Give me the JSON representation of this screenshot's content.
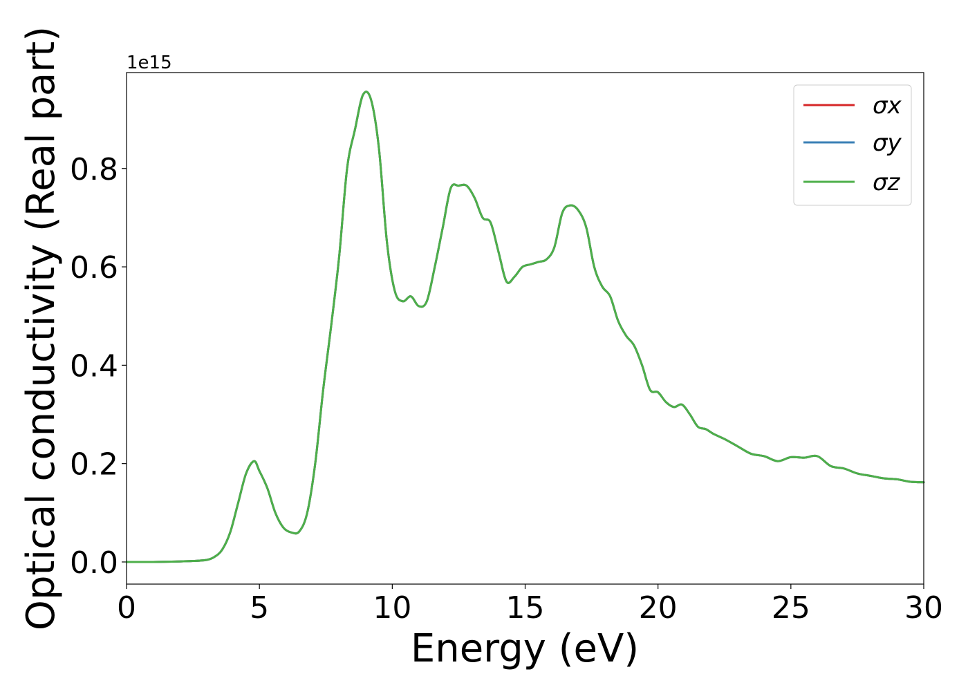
{
  "chart_data": {
    "type": "line",
    "title": "",
    "xlabel": "Energy (eV)",
    "ylabel": "Optical conductivity (Real part)",
    "y_offset_label": "1e15",
    "xlim": [
      0,
      30
    ],
    "ylim": [
      -0.045,
      0.995
    ],
    "x_ticks": [
      0,
      5,
      10,
      15,
      20,
      25,
      30
    ],
    "x_tick_labels": [
      "0",
      "5",
      "10",
      "15",
      "20",
      "25",
      "30"
    ],
    "y_ticks": [
      0.0,
      0.2,
      0.4,
      0.6,
      0.8
    ],
    "y_tick_labels": [
      "0.0",
      "0.2",
      "0.4",
      "0.6",
      "0.8"
    ],
    "grid": false,
    "legend_position": "upper right",
    "x": [
      0,
      1,
      2,
      2.5,
      3,
      3.3,
      3.6,
      3.9,
      4.2,
      4.5,
      4.8,
      5.0,
      5.3,
      5.6,
      5.9,
      6.2,
      6.5,
      6.8,
      7.1,
      7.4,
      7.7,
      8.0,
      8.3,
      8.6,
      8.9,
      9.2,
      9.5,
      9.8,
      10.1,
      10.4,
      10.7,
      11.0,
      11.3,
      11.6,
      11.9,
      12.2,
      12.5,
      12.8,
      13.1,
      13.4,
      13.7,
      14.0,
      14.3,
      14.6,
      14.9,
      15.2,
      15.5,
      15.8,
      16.1,
      16.4,
      16.7,
      17.0,
      17.3,
      17.6,
      17.9,
      18.2,
      18.5,
      18.8,
      19.1,
      19.4,
      19.7,
      20.0,
      20.3,
      20.6,
      20.9,
      21.2,
      21.5,
      21.8,
      22.1,
      22.5,
      23.0,
      23.5,
      24.0,
      24.5,
      25.0,
      25.5,
      26.0,
      26.5,
      27.0,
      27.5,
      28.0,
      28.5,
      29.0,
      29.5,
      30.0
    ],
    "series": [
      {
        "name": "σx",
        "color": "#d62728",
        "values": [
          0.0,
          0.0,
          0.001,
          0.002,
          0.004,
          0.01,
          0.025,
          0.06,
          0.12,
          0.18,
          0.205,
          0.185,
          0.15,
          0.1,
          0.07,
          0.06,
          0.062,
          0.1,
          0.2,
          0.35,
          0.48,
          0.62,
          0.8,
          0.88,
          0.95,
          0.94,
          0.84,
          0.65,
          0.55,
          0.53,
          0.54,
          0.52,
          0.53,
          0.6,
          0.68,
          0.76,
          0.765,
          0.765,
          0.74,
          0.7,
          0.69,
          0.63,
          0.57,
          0.58,
          0.6,
          0.605,
          0.61,
          0.615,
          0.64,
          0.71,
          0.725,
          0.715,
          0.68,
          0.6,
          0.56,
          0.54,
          0.49,
          0.46,
          0.44,
          0.4,
          0.35,
          0.345,
          0.325,
          0.315,
          0.32,
          0.3,
          0.275,
          0.27,
          0.26,
          0.25,
          0.235,
          0.22,
          0.215,
          0.205,
          0.213,
          0.212,
          0.215,
          0.195,
          0.19,
          0.18,
          0.175,
          0.17,
          0.168,
          0.163,
          0.162
        ]
      },
      {
        "name": "σy",
        "color": "#3a7fb5",
        "values": [
          0.0,
          0.0,
          0.001,
          0.002,
          0.004,
          0.01,
          0.025,
          0.06,
          0.12,
          0.18,
          0.205,
          0.185,
          0.15,
          0.1,
          0.07,
          0.06,
          0.062,
          0.1,
          0.2,
          0.35,
          0.48,
          0.62,
          0.8,
          0.88,
          0.95,
          0.94,
          0.84,
          0.65,
          0.55,
          0.53,
          0.54,
          0.52,
          0.53,
          0.6,
          0.68,
          0.76,
          0.765,
          0.765,
          0.74,
          0.7,
          0.69,
          0.63,
          0.57,
          0.58,
          0.6,
          0.605,
          0.61,
          0.615,
          0.64,
          0.71,
          0.725,
          0.715,
          0.68,
          0.6,
          0.56,
          0.54,
          0.49,
          0.46,
          0.44,
          0.4,
          0.35,
          0.345,
          0.325,
          0.315,
          0.32,
          0.3,
          0.275,
          0.27,
          0.26,
          0.25,
          0.235,
          0.22,
          0.215,
          0.205,
          0.213,
          0.212,
          0.215,
          0.195,
          0.19,
          0.18,
          0.175,
          0.17,
          0.168,
          0.163,
          0.162
        ]
      },
      {
        "name": "σz",
        "color": "#4daf4a",
        "values": [
          0.0,
          0.0,
          0.001,
          0.002,
          0.004,
          0.01,
          0.025,
          0.06,
          0.12,
          0.18,
          0.205,
          0.185,
          0.15,
          0.1,
          0.07,
          0.06,
          0.062,
          0.1,
          0.2,
          0.35,
          0.48,
          0.62,
          0.8,
          0.88,
          0.95,
          0.94,
          0.84,
          0.65,
          0.55,
          0.53,
          0.54,
          0.52,
          0.53,
          0.6,
          0.68,
          0.76,
          0.765,
          0.765,
          0.74,
          0.7,
          0.69,
          0.63,
          0.57,
          0.58,
          0.6,
          0.605,
          0.61,
          0.615,
          0.64,
          0.71,
          0.725,
          0.715,
          0.68,
          0.6,
          0.56,
          0.54,
          0.49,
          0.46,
          0.44,
          0.4,
          0.35,
          0.345,
          0.325,
          0.315,
          0.32,
          0.3,
          0.275,
          0.27,
          0.26,
          0.25,
          0.235,
          0.22,
          0.215,
          0.205,
          0.213,
          0.212,
          0.215,
          0.195,
          0.19,
          0.18,
          0.175,
          0.17,
          0.168,
          0.163,
          0.162
        ]
      }
    ]
  }
}
